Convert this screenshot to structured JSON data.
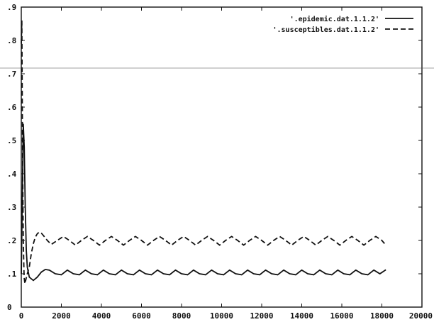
{
  "chart_data": {
    "type": "line",
    "title": "",
    "xlabel": "",
    "ylabel": "",
    "xlim": [
      0,
      20000
    ],
    "ylim": [
      0,
      0.9
    ],
    "x_ticks": [
      0,
      2000,
      4000,
      6000,
      8000,
      10000,
      12000,
      14000,
      16000,
      18000,
      20000
    ],
    "y_ticks": [
      0,
      0.1,
      0.2,
      0.3,
      0.4,
      0.5,
      0.6,
      0.7,
      0.8,
      0.9
    ],
    "x_tick_labels": [
      "0",
      "2000",
      "4000",
      "6000",
      "8000",
      "10000",
      "12000",
      "14000",
      "16000",
      "18000",
      "20000"
    ],
    "y_tick_labels": [
      "0",
      ".1",
      ".2",
      ".3",
      ".4",
      ".5",
      ".6",
      ".7",
      ".8",
      ".9"
    ],
    "grid": false,
    "legend_position": "top-right",
    "series": [
      {
        "name": "'.epidemic.dat.1.1.2'",
        "style": "solid",
        "x": [
          0,
          50,
          100,
          150,
          200,
          250,
          300,
          400,
          500,
          600,
          800,
          1000,
          1200,
          1400,
          1700,
          2000,
          2300,
          2600,
          2900,
          3200,
          3500,
          3800,
          4100,
          4400,
          4700,
          5000,
          5300,
          5600,
          5900,
          6200,
          6500,
          6800,
          7100,
          7400,
          7700,
          8000,
          8300,
          8600,
          8900,
          9200,
          9500,
          9800,
          10100,
          10400,
          10700,
          11000,
          11300,
          11600,
          11900,
          12200,
          12500,
          12800,
          13100,
          13400,
          13700,
          14000,
          14300,
          14600,
          14900,
          15200,
          15500,
          15800,
          16100,
          16400,
          16700,
          17000,
          17300,
          17600,
          17900,
          18200
        ],
        "y": [
          0.1,
          0.32,
          0.55,
          0.48,
          0.3,
          0.17,
          0.12,
          0.09,
          0.085,
          0.08,
          0.09,
          0.105,
          0.113,
          0.111,
          0.1,
          0.097,
          0.111,
          0.1,
          0.097,
          0.111,
          0.1,
          0.097,
          0.111,
          0.1,
          0.097,
          0.111,
          0.1,
          0.097,
          0.111,
          0.1,
          0.097,
          0.111,
          0.1,
          0.097,
          0.111,
          0.1,
          0.097,
          0.111,
          0.1,
          0.097,
          0.111,
          0.1,
          0.097,
          0.111,
          0.1,
          0.097,
          0.111,
          0.1,
          0.097,
          0.111,
          0.1,
          0.097,
          0.111,
          0.1,
          0.097,
          0.111,
          0.1,
          0.097,
          0.111,
          0.1,
          0.097,
          0.111,
          0.1,
          0.097,
          0.111,
          0.1,
          0.097,
          0.111,
          0.1,
          0.112
        ]
      },
      {
        "name": "'.susceptibles.dat.1.1.2'",
        "style": "dashed",
        "x": [
          0,
          30,
          60,
          100,
          140,
          180,
          220,
          260,
          300,
          400,
          500,
          600,
          700,
          800,
          900,
          1000,
          1100,
          1300,
          1500,
          1800,
          2100,
          2400,
          2700,
          3000,
          3300,
          3600,
          3900,
          4200,
          4500,
          4800,
          5100,
          5400,
          5700,
          6000,
          6300,
          6600,
          6900,
          7200,
          7500,
          7800,
          8100,
          8400,
          8700,
          9000,
          9300,
          9600,
          9900,
          10200,
          10500,
          10800,
          11100,
          11400,
          11700,
          12000,
          12300,
          12600,
          12900,
          13200,
          13500,
          13800,
          14100,
          14400,
          14700,
          15000,
          15300,
          15600,
          15900,
          16200,
          16500,
          16800,
          17100,
          17400,
          17700,
          18000,
          18200
        ],
        "y": [
          0.79,
          0.86,
          0.5,
          0.2,
          0.09,
          0.07,
          0.08,
          0.09,
          0.1,
          0.12,
          0.16,
          0.19,
          0.21,
          0.22,
          0.225,
          0.222,
          0.215,
          0.2,
          0.188,
          0.2,
          0.212,
          0.2,
          0.186,
          0.2,
          0.212,
          0.2,
          0.186,
          0.2,
          0.212,
          0.2,
          0.186,
          0.2,
          0.212,
          0.2,
          0.186,
          0.2,
          0.212,
          0.2,
          0.186,
          0.2,
          0.212,
          0.2,
          0.186,
          0.2,
          0.212,
          0.2,
          0.186,
          0.2,
          0.212,
          0.2,
          0.186,
          0.2,
          0.212,
          0.2,
          0.186,
          0.2,
          0.212,
          0.2,
          0.186,
          0.2,
          0.212,
          0.2,
          0.186,
          0.2,
          0.212,
          0.2,
          0.186,
          0.2,
          0.212,
          0.2,
          0.186,
          0.2,
          0.212,
          0.2,
          0.186
        ]
      }
    ]
  }
}
